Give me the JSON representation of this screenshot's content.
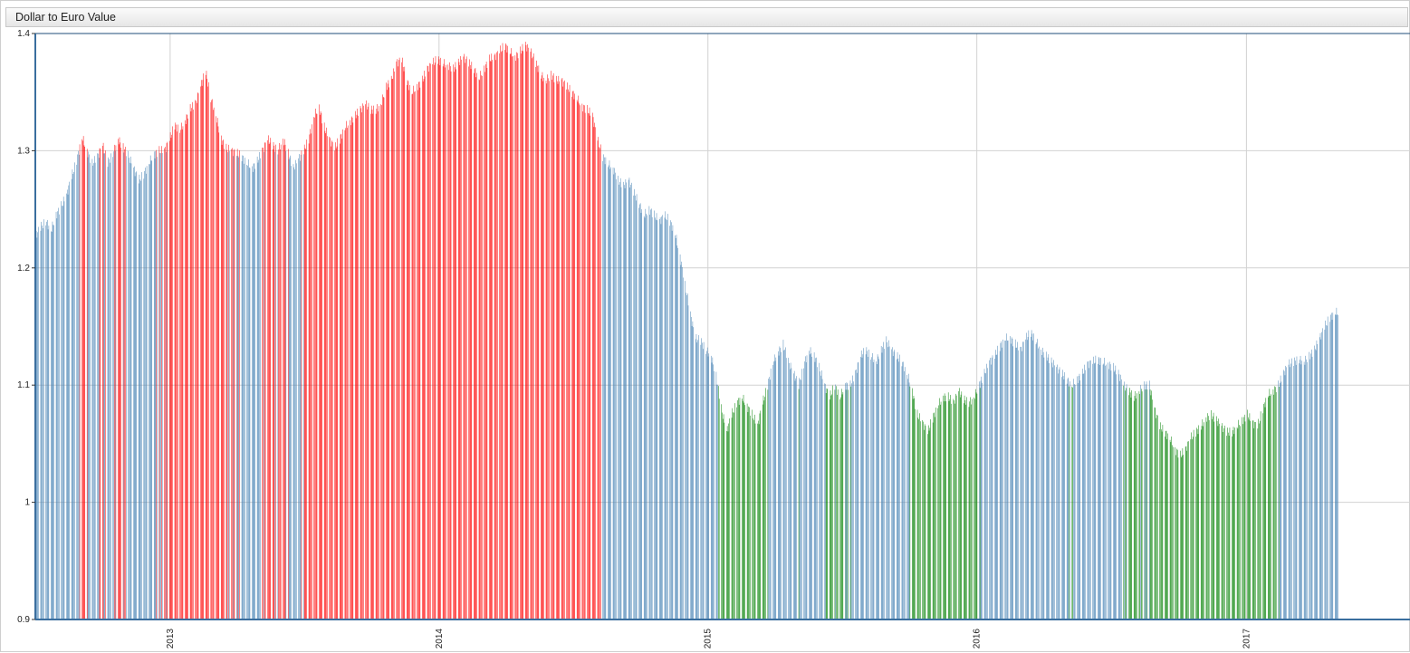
{
  "window": {
    "title": "Dollar to Euro Value"
  },
  "colors": {
    "normal": "#4682b4",
    "high": "#ff0000",
    "low": "#008000"
  },
  "chart_data": {
    "type": "bar",
    "title": "Dollar to Euro Value",
    "xlabel": "",
    "ylabel": "",
    "x_range": [
      "2012-07-02",
      "2017-08-11"
    ],
    "ylim": [
      0.9,
      1.4
    ],
    "y_ticks": [
      "0.9",
      "1",
      "1.1",
      "1.2",
      "1.3",
      "1.4"
    ],
    "x_ticks": [
      "2013",
      "2014",
      "2015",
      "2016",
      "2017"
    ],
    "grid": true,
    "color_rule": {
      "high_above": 1.3,
      "low_below": 1.1
    },
    "series": [
      {
        "values": [
          1.227,
          1.235,
          1.24,
          1.232,
          1.245,
          1.253,
          1.262,
          1.278,
          1.292,
          1.312,
          1.3,
          1.289,
          1.295,
          1.305,
          1.29,
          1.298,
          1.31,
          1.303,
          1.296,
          1.285,
          1.275,
          1.28,
          1.29,
          1.297,
          1.3,
          1.3,
          1.31,
          1.322,
          1.318,
          1.325,
          1.336,
          1.34,
          1.355,
          1.368,
          1.345,
          1.33,
          1.31,
          1.302,
          1.3,
          1.298,
          1.295,
          1.29,
          1.285,
          1.291,
          1.3,
          1.31,
          1.305,
          1.3,
          1.31,
          1.298,
          1.285,
          1.293,
          1.3,
          1.31,
          1.33,
          1.337,
          1.32,
          1.31,
          1.302,
          1.31,
          1.32,
          1.325,
          1.33,
          1.335,
          1.34,
          1.335,
          1.335,
          1.34,
          1.355,
          1.36,
          1.375,
          1.378,
          1.36,
          1.35,
          1.355,
          1.36,
          1.37,
          1.375,
          1.378,
          1.375,
          1.373,
          1.37,
          1.375,
          1.38,
          1.375,
          1.37,
          1.362,
          1.37,
          1.378,
          1.38,
          1.385,
          1.39,
          1.385,
          1.38,
          1.385,
          1.39,
          1.385,
          1.375,
          1.365,
          1.36,
          1.365,
          1.36,
          1.36,
          1.355,
          1.35,
          1.345,
          1.338,
          1.335,
          1.33,
          1.31,
          1.295,
          1.289,
          1.285,
          1.275,
          1.27,
          1.275,
          1.265,
          1.255,
          1.245,
          1.25,
          1.245,
          1.24,
          1.245,
          1.24,
          1.23,
          1.21,
          1.185,
          1.16,
          1.14,
          1.138,
          1.13,
          1.125,
          1.108,
          1.08,
          1.06,
          1.075,
          1.085,
          1.09,
          1.082,
          1.075,
          1.065,
          1.085,
          1.1,
          1.12,
          1.128,
          1.135,
          1.12,
          1.11,
          1.1,
          1.118,
          1.13,
          1.125,
          1.115,
          1.1,
          1.09,
          1.1,
          1.09,
          1.1,
          1.1,
          1.11,
          1.125,
          1.13,
          1.125,
          1.12,
          1.13,
          1.138,
          1.13,
          1.125,
          1.12,
          1.11,
          1.095,
          1.075,
          1.068,
          1.06,
          1.072,
          1.083,
          1.09,
          1.09,
          1.085,
          1.095,
          1.088,
          1.085,
          1.09,
          1.1,
          1.11,
          1.12,
          1.125,
          1.133,
          1.14,
          1.14,
          1.135,
          1.13,
          1.14,
          1.145,
          1.138,
          1.13,
          1.125,
          1.12,
          1.115,
          1.11,
          1.105,
          1.1,
          1.105,
          1.11,
          1.118,
          1.12,
          1.122,
          1.12,
          1.118,
          1.115,
          1.11,
          1.1,
          1.095,
          1.09,
          1.095,
          1.1,
          1.1,
          1.08,
          1.065,
          1.06,
          1.055,
          1.045,
          1.04,
          1.045,
          1.055,
          1.06,
          1.065,
          1.072,
          1.075,
          1.07,
          1.065,
          1.06,
          1.06,
          1.065,
          1.07,
          1.075,
          1.068,
          1.065,
          1.08,
          1.092,
          1.095,
          1.1,
          1.11,
          1.118,
          1.12,
          1.122,
          1.12,
          1.125,
          1.13,
          1.14,
          1.15,
          1.158,
          1.162
        ]
      }
    ]
  }
}
